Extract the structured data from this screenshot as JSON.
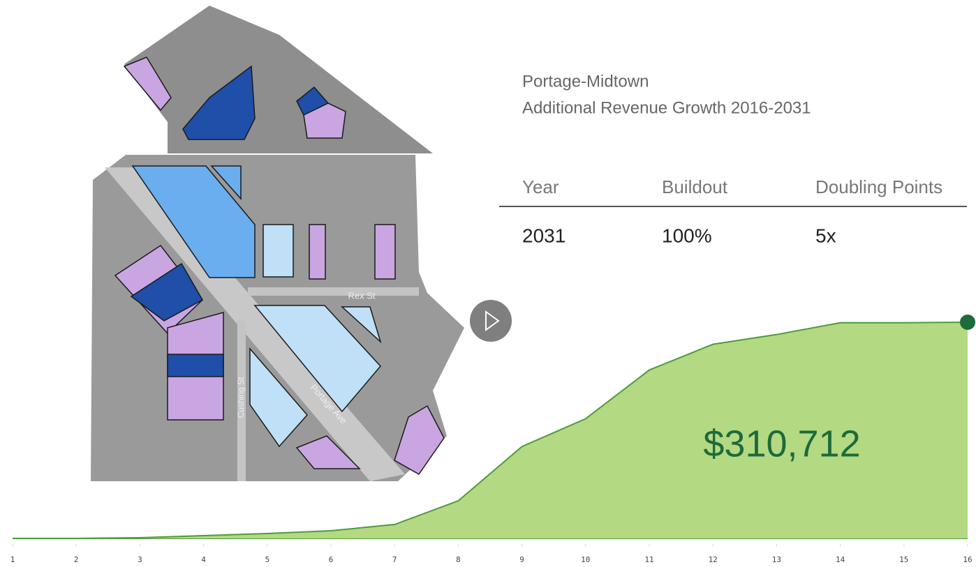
{
  "header": {
    "title": [
      "Portage-Midtown",
      "Additional Revenue Growth 2016-2031"
    ]
  },
  "table": {
    "columns": [
      "Year",
      "Buildout",
      "Doubling Points"
    ],
    "rows": [
      [
        "2031",
        "100%",
        "5x"
      ]
    ]
  },
  "map": {
    "street_labels": [
      "Rex St",
      "Portage Ave",
      "Cushing St"
    ]
  },
  "chart_data": {
    "type": "area",
    "x": [
      1,
      2,
      3,
      4,
      5,
      6,
      7,
      8,
      9,
      10,
      11,
      12,
      13,
      14,
      15,
      16
    ],
    "values": [
      0,
      0,
      1000,
      4000,
      7000,
      11000,
      20000,
      54000,
      132000,
      172000,
      242000,
      279000,
      293000,
      310000,
      310000,
      310712
    ],
    "annotation": "$310,712",
    "xlim": [
      1,
      16
    ],
    "xticks": [
      1,
      2,
      3,
      4,
      5,
      6,
      7,
      8,
      9,
      10,
      11,
      12,
      13,
      14,
      15,
      16
    ],
    "ylim": [
      0,
      310712
    ],
    "color": "#b3d982",
    "line_color": "#4f9a3d",
    "marker_color": "#1d6a3a"
  }
}
